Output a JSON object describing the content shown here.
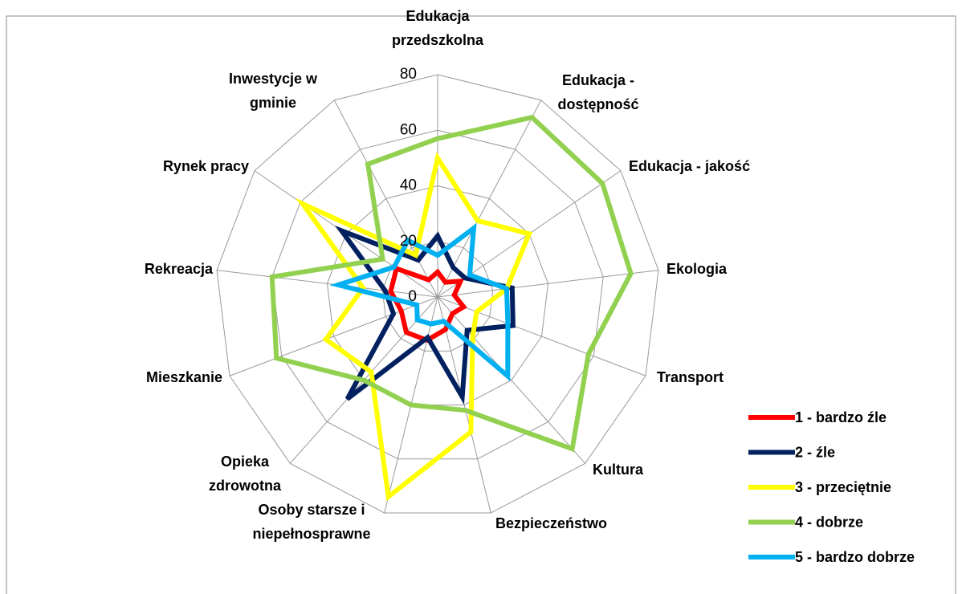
{
  "chart_data": {
    "type": "radar",
    "categories": [
      "Edukacja przedszkolna",
      "Edukacja - dostępność",
      "Edukacja - jakość",
      "Ekologia",
      "Transport",
      "Kultura",
      "Bezpieczeństwo",
      "Osoby starsze i niepełnosprawne",
      "Opieka zdrowotna",
      "Mieszkanie",
      "Rekreacja",
      "Rynek pracy",
      "Inwestycje w gminie"
    ],
    "series": [
      {
        "name": "1 - bardzo źle",
        "color": "#ff0000",
        "values": [
          9,
          6,
          10,
          6,
          10,
          8,
          12,
          16,
          17,
          14,
          17,
          18,
          7
        ]
      },
      {
        "name": "2 - źle",
        "color": "#002060",
        "values": [
          22,
          12,
          12,
          27,
          29,
          16,
          37,
          15,
          49,
          17,
          19,
          42,
          15
        ]
      },
      {
        "name": "3 - przeciętnie",
        "color": "#ffff00",
        "values": [
          50,
          31,
          40,
          25,
          15,
          19,
          50,
          74,
          36,
          43,
          27,
          59,
          17
        ]
      },
      {
        "name": "4 - dobrze",
        "color": "#92d050",
        "values": [
          57,
          73,
          72,
          70,
          58,
          73,
          42,
          40,
          40,
          62,
          60,
          24,
          54
        ]
      },
      {
        "name": "5 - bardzo dobrze",
        "color": "#00b0f0",
        "values": [
          15,
          28,
          14,
          25,
          27,
          38,
          9,
          10,
          11,
          8,
          36,
          19,
          23
        ]
      }
    ],
    "ylim": [
      0,
      80
    ],
    "yticks": [
      0,
      20,
      40,
      60,
      80
    ],
    "grid": true,
    "legend": "right"
  }
}
